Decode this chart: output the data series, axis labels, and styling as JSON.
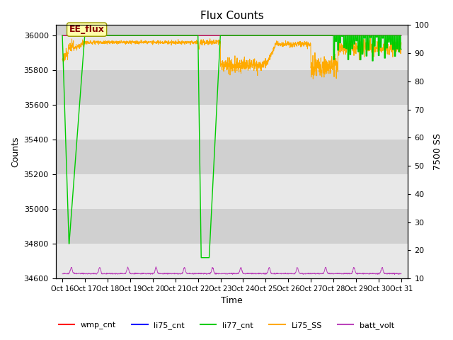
{
  "title": "Flux Counts",
  "xlabel": "Time",
  "ylabel_left": "Counts",
  "ylabel_right": "7500 SS",
  "ylim_left": [
    34600,
    36060
  ],
  "ylim_right": [
    10,
    100
  ],
  "yticks_left": [
    34600,
    34800,
    35000,
    35200,
    35400,
    35600,
    35800,
    36000
  ],
  "yticks_right": [
    10,
    20,
    30,
    40,
    50,
    60,
    70,
    80,
    90,
    100
  ],
  "xtick_labels": [
    "Oct 16",
    "Oct 17",
    "Oct 18",
    "Oct 19",
    "Oct 20",
    "Oct 21",
    "Oct 22",
    "Oct 23",
    "Oct 24",
    "Oct 25",
    "Oct 26",
    "Oct 27",
    "Oct 28",
    "Oct 29",
    "Oct 30",
    "Oct 31"
  ],
  "annotation_text": "EE_flux",
  "bg_color": "#d0d0d0",
  "band_color": "#e8e8e8",
  "legend_entries": [
    {
      "label": "wmp_cnt",
      "color": "#ff0000"
    },
    {
      "label": "li75_cnt",
      "color": "#0000ff"
    },
    {
      "label": "li77_cnt",
      "color": "#00cc00"
    },
    {
      "label": "Li75_SS",
      "color": "#ffaa00"
    },
    {
      "label": "batt_volt",
      "color": "#bb44bb"
    }
  ]
}
